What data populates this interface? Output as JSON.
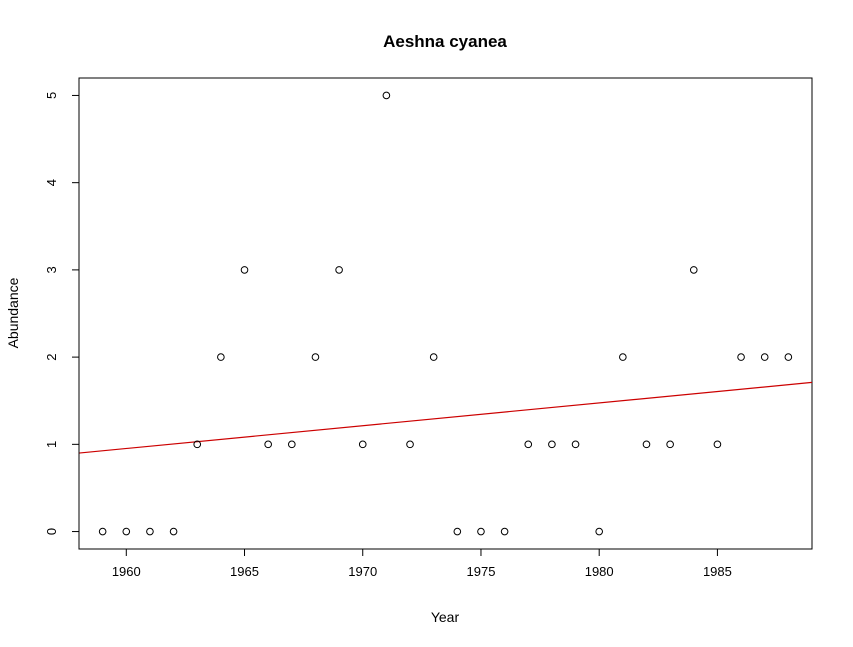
{
  "chart_data": {
    "type": "scatter",
    "title": "Aeshna cyanea",
    "xlabel": "Year",
    "ylabel": "Abundance",
    "xlim": [
      1958,
      1989
    ],
    "ylim": [
      -0.2,
      5.2
    ],
    "xticks": [
      1960,
      1965,
      1970,
      1975,
      1980,
      1985
    ],
    "yticks": [
      0,
      1,
      2,
      3,
      4,
      5
    ],
    "grid": false,
    "points": {
      "x": [
        1959,
        1960,
        1961,
        1962,
        1963,
        1964,
        1965,
        1966,
        1967,
        1968,
        1969,
        1970,
        1971,
        1972,
        1973,
        1974,
        1975,
        1976,
        1977,
        1978,
        1979,
        1980,
        1981,
        1982,
        1983,
        1984,
        1985,
        1986,
        1987,
        1988
      ],
      "y": [
        0,
        0,
        0,
        0,
        1,
        2,
        3,
        1,
        1,
        2,
        3,
        1,
        5,
        1,
        2,
        0,
        0,
        0,
        1,
        1,
        1,
        0,
        2,
        1,
        1,
        3,
        1,
        2,
        2,
        2
      ],
      "marker": "open-circle",
      "color": "#000000"
    },
    "trend_line": {
      "x": [
        1958,
        1989
      ],
      "y": [
        0.9,
        1.71
      ],
      "color": "#cc0000"
    }
  }
}
